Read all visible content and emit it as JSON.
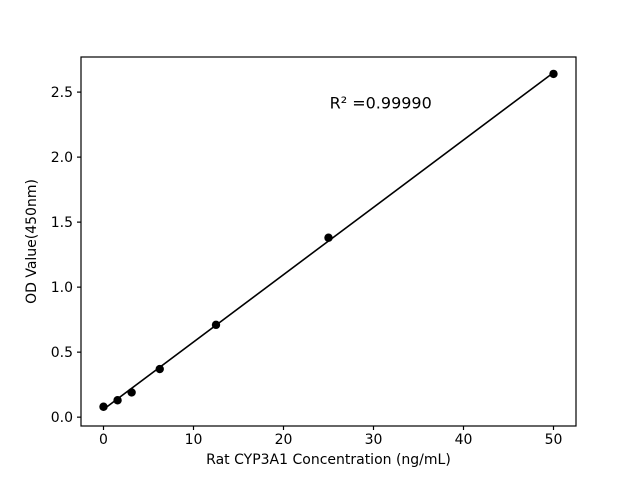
{
  "chart_data": {
    "type": "scatter",
    "title": "",
    "xlabel": "Rat CYP3A1 Concentration (ng/mL)",
    "ylabel": "OD Value(450nm)",
    "x": [
      0,
      1.5625,
      3.125,
      6.25,
      12.5,
      25,
      50
    ],
    "y": [
      0.08,
      0.13,
      0.19,
      0.37,
      0.71,
      1.38,
      2.64
    ],
    "fit_line": {
      "x1": 0,
      "y1": 0.06,
      "x2": 50,
      "y2": 2.65
    },
    "annotation": {
      "text": "R² =0.99990",
      "x": 30.8,
      "y": 2.42
    },
    "xticks": {
      "values": [
        0,
        10,
        20,
        30,
        40,
        50
      ],
      "labels": [
        "0",
        "10",
        "20",
        "30",
        "40",
        "50"
      ]
    },
    "yticks": {
      "values": [
        0,
        0.5,
        1.0,
        1.5,
        2.0,
        2.5
      ],
      "labels": [
        "0.0",
        "0.5",
        "1.0",
        "1.5",
        "2.0",
        "2.5"
      ]
    },
    "xlim": [
      -2.5,
      52.5
    ],
    "ylim": [
      -0.068,
      2.77
    ],
    "grid": false,
    "legend": null,
    "marker_color": "#000000",
    "line_color": "#000000",
    "axis_color": "#000000",
    "background": "#ffffff"
  }
}
